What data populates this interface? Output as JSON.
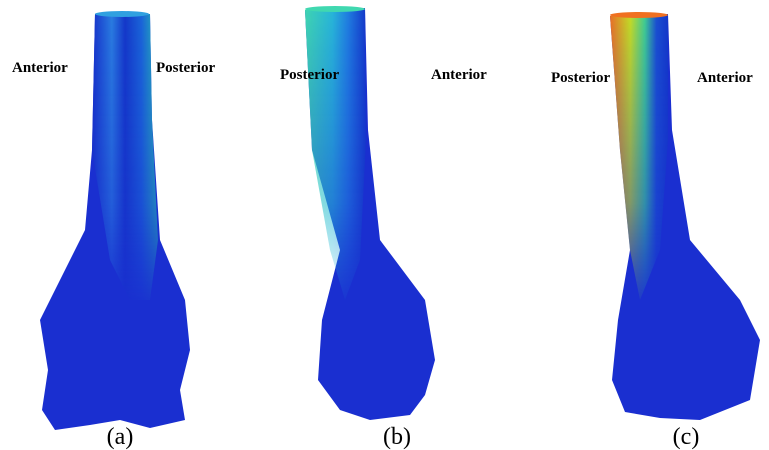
{
  "panels": [
    {
      "caption": "(a)",
      "left_label": "Anterior",
      "right_label": "Posterior"
    },
    {
      "caption": "(b)",
      "left_label": "Posterior",
      "right_label": "Anterior"
    },
    {
      "caption": "(c)",
      "left_label": "Posterior",
      "right_label": "Anterior"
    }
  ]
}
